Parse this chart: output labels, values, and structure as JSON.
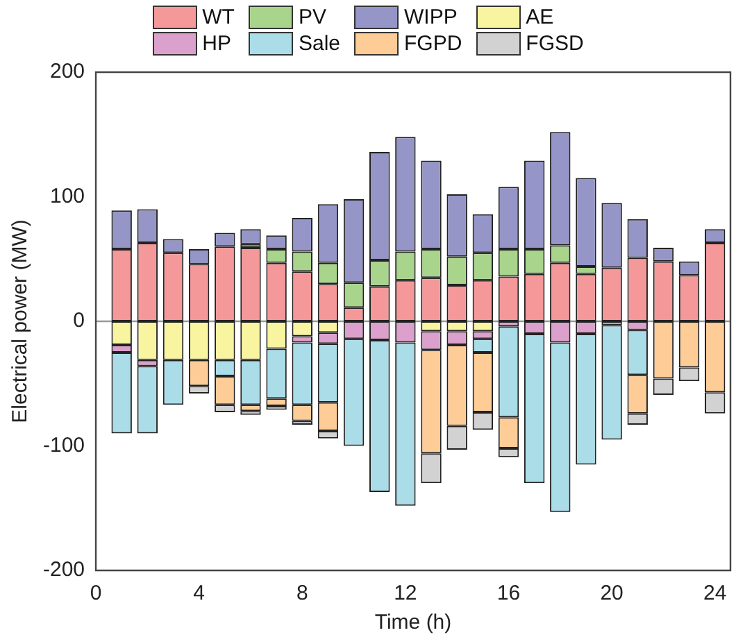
{
  "chart_data": {
    "type": "bar",
    "stacked": true,
    "xlabel": "Time (h)",
    "ylabel": "Electrical power (MW)",
    "x": [
      1,
      2,
      3,
      4,
      5,
      6,
      7,
      8,
      9,
      10,
      11,
      12,
      13,
      14,
      15,
      16,
      17,
      18,
      19,
      20,
      21,
      22,
      23,
      24
    ],
    "xlim": [
      0,
      24.6
    ],
    "xticks": [
      0,
      4,
      8,
      12,
      16,
      20,
      24
    ],
    "ylim": [
      -200,
      200
    ],
    "yticks": [
      -200,
      -100,
      0,
      100,
      200
    ],
    "grid": false,
    "legend": "top",
    "ref_lines": [
      {
        "axis": "y",
        "value": 0,
        "color": "#999999"
      }
    ],
    "series": [
      {
        "name": "WT",
        "color": "#f4989a",
        "values": [
          58,
          63,
          55,
          46,
          60,
          59,
          47,
          40,
          30,
          11,
          28,
          33,
          35,
          29,
          33,
          36,
          38,
          47,
          38,
          43,
          51,
          48,
          37,
          63
        ]
      },
      {
        "name": "PV",
        "color": "#a8d48c",
        "values": [
          null,
          null,
          null,
          null,
          null,
          3,
          11,
          16,
          17,
          20,
          21,
          23,
          23,
          23,
          22,
          22,
          20,
          14,
          6,
          null,
          null,
          null,
          null,
          null
        ]
      },
      {
        "name": "WIPP",
        "color": "#9595c8",
        "values": [
          31,
          27,
          11,
          12,
          11,
          12,
          11,
          27,
          47,
          67,
          87,
          92,
          71,
          50,
          31,
          50,
          71,
          91,
          71,
          52,
          31,
          11,
          11,
          11
        ]
      },
      {
        "name": "AE",
        "color": "#f8f4a0",
        "values": [
          -19,
          -31,
          -31,
          -31,
          -31,
          -31,
          -22,
          -12,
          -9,
          null,
          null,
          null,
          -8,
          -8,
          -8,
          null,
          null,
          null,
          null,
          null,
          null,
          null,
          null,
          null
        ]
      },
      {
        "name": "HP",
        "color": "#dca0cc",
        "values": [
          -6,
          -5,
          null,
          null,
          null,
          null,
          null,
          -5,
          -9,
          -14,
          -15,
          -17,
          -15,
          -11,
          -6,
          -4,
          -10,
          -17,
          -10,
          -3,
          -7,
          null,
          null,
          null
        ]
      },
      {
        "name": "Sale",
        "color": "#aadde8",
        "values": [
          -65,
          -54,
          -36,
          null,
          -13,
          -36,
          -40,
          -50,
          -47,
          -86,
          -122,
          -131,
          null,
          null,
          -11,
          -73,
          -120,
          -136,
          -105,
          -92,
          -36,
          null,
          null,
          null
        ]
      },
      {
        "name": "FGPD",
        "color": "#fecc96",
        "values": [
          null,
          null,
          null,
          -21,
          -23,
          -5,
          -6,
          -13,
          -23,
          null,
          null,
          null,
          -83,
          -65,
          -48,
          -25,
          null,
          null,
          null,
          null,
          -31,
          -46,
          -37,
          -57
        ]
      },
      {
        "name": "FGSD",
        "color": "#d2d2d2",
        "values": [
          null,
          null,
          null,
          -6,
          -6,
          -3,
          -3,
          -3,
          -6,
          null,
          null,
          null,
          -24,
          -19,
          -14,
          -7,
          null,
          null,
          null,
          null,
          -9,
          -13,
          -11,
          -17
        ]
      }
    ]
  }
}
